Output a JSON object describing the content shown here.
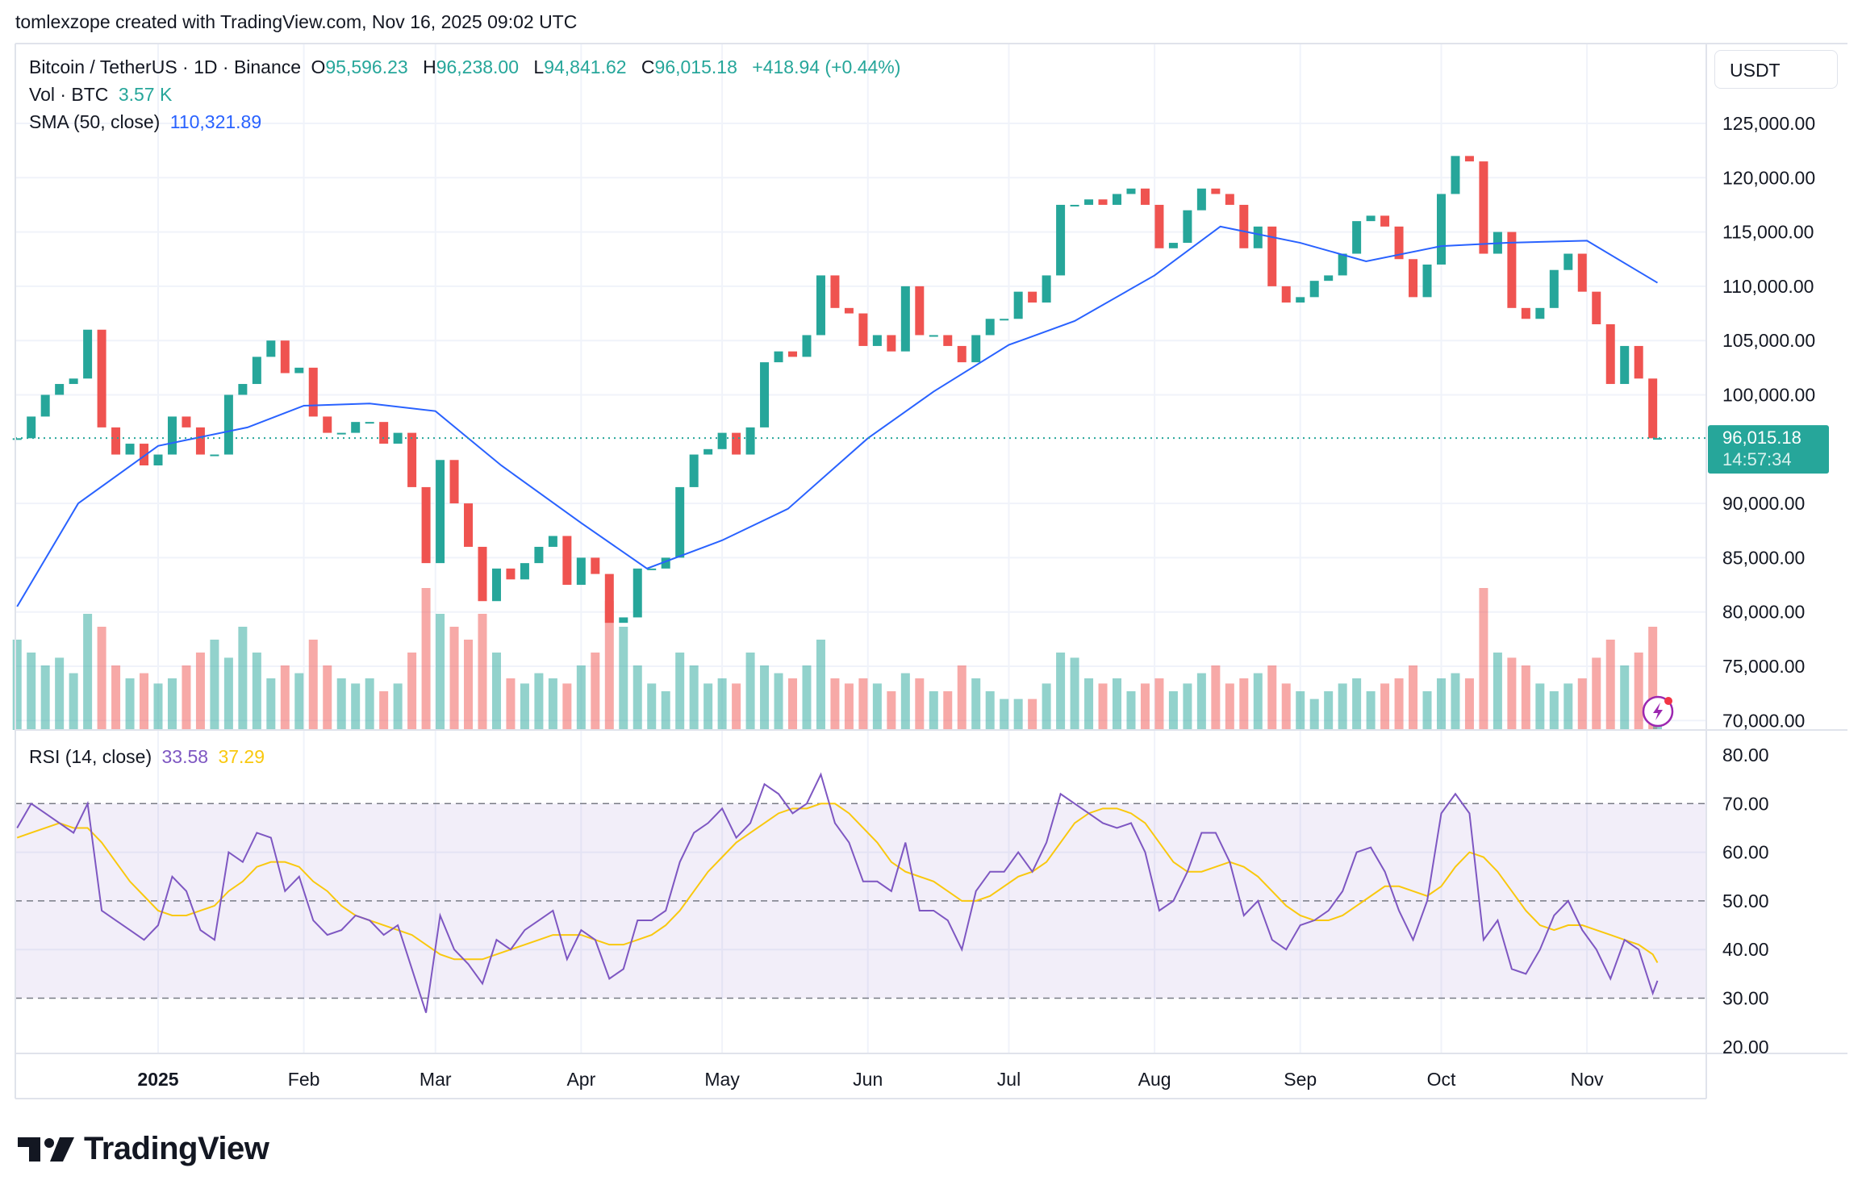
{
  "attribution": "tomlexzope created with TradingView.com, Nov 16, 2025 09:02 UTC",
  "legend": {
    "symbol": "Bitcoin / TetherUS · 1D · Binance",
    "open_label": "O",
    "open": "95,596.23",
    "high_label": "H",
    "high": "96,238.00",
    "low_label": "L",
    "low": "94,841.62",
    "close_label": "C",
    "close": "96,015.18",
    "change": "+418.94 (+0.44%)",
    "vol_label": "Vol · BTC",
    "vol": "3.57 K",
    "sma_label": "SMA (50, close)",
    "sma": "110,321.89",
    "rsi_label": "RSI (14, close)",
    "rsi": "33.58",
    "rsi_ma": "37.29"
  },
  "price_scale": {
    "currency_button": "USDT",
    "last_price": "96,015.18",
    "countdown": "14:57:34"
  },
  "logo": "TradingView",
  "colors": {
    "up": "#26a69a",
    "down": "#ef5350",
    "sma": "#2962ff",
    "rsi": "#7e57c2",
    "rsi_ma": "#f9c80e",
    "rsi_band": "#7e57c2",
    "grid": "#f0f3fa"
  },
  "chart_data": [
    {
      "type": "candlestick",
      "title": "Bitcoin / TetherUS · 1D · Binance",
      "ylim": [
        70000,
        127000
      ],
      "y_ticks": [
        "125,000.00",
        "120,000.00",
        "115,000.00",
        "110,000.00",
        "105,000.00",
        "100,000.00",
        "90,000.00",
        "85,000.00",
        "80,000.00",
        "75,000.00",
        "70,000.00"
      ],
      "y_tick_values": [
        125000,
        120000,
        115000,
        110000,
        105000,
        100000,
        90000,
        85000,
        80000,
        75000,
        70000
      ],
      "x_ticks": [
        "2025",
        "Feb",
        "Mar",
        "Apr",
        "May",
        "Jun",
        "Jul",
        "Aug",
        "Sep",
        "Oct",
        "Nov"
      ],
      "x_tick_dates": [
        "2025-01-01",
        "2025-02-01",
        "2025-03-01",
        "2025-04-01",
        "2025-05-01",
        "2025-06-01",
        "2025-07-01",
        "2025-08-01",
        "2025-09-01",
        "2025-10-01",
        "2025-11-01"
      ],
      "grid": true,
      "last_price": 96015.18,
      "dates": [
        "2024-12-02",
        "2024-12-05",
        "2024-12-08",
        "2024-12-11",
        "2024-12-14",
        "2024-12-17",
        "2024-12-20",
        "2024-12-23",
        "2024-12-26",
        "2024-12-29",
        "2025-01-01",
        "2025-01-04",
        "2025-01-07",
        "2025-01-10",
        "2025-01-13",
        "2025-01-16",
        "2025-01-19",
        "2025-01-22",
        "2025-01-25",
        "2025-01-28",
        "2025-01-31",
        "2025-02-03",
        "2025-02-06",
        "2025-02-09",
        "2025-02-12",
        "2025-02-15",
        "2025-02-18",
        "2025-02-21",
        "2025-02-24",
        "2025-02-27",
        "2025-03-02",
        "2025-03-05",
        "2025-03-08",
        "2025-03-11",
        "2025-03-14",
        "2025-03-17",
        "2025-03-20",
        "2025-03-23",
        "2025-03-26",
        "2025-03-29",
        "2025-04-01",
        "2025-04-04",
        "2025-04-07",
        "2025-04-10",
        "2025-04-13",
        "2025-04-16",
        "2025-04-19",
        "2025-04-22",
        "2025-04-25",
        "2025-04-28",
        "2025-05-01",
        "2025-05-04",
        "2025-05-07",
        "2025-05-10",
        "2025-05-13",
        "2025-05-16",
        "2025-05-19",
        "2025-05-22",
        "2025-05-25",
        "2025-05-28",
        "2025-05-31",
        "2025-06-03",
        "2025-06-06",
        "2025-06-09",
        "2025-06-12",
        "2025-06-15",
        "2025-06-18",
        "2025-06-21",
        "2025-06-24",
        "2025-06-27",
        "2025-06-30",
        "2025-07-03",
        "2025-07-06",
        "2025-07-09",
        "2025-07-12",
        "2025-07-15",
        "2025-07-18",
        "2025-07-21",
        "2025-07-24",
        "2025-07-27",
        "2025-07-30",
        "2025-08-02",
        "2025-08-05",
        "2025-08-08",
        "2025-08-11",
        "2025-08-14",
        "2025-08-17",
        "2025-08-20",
        "2025-08-23",
        "2025-08-26",
        "2025-08-29",
        "2025-09-01",
        "2025-09-04",
        "2025-09-07",
        "2025-09-10",
        "2025-09-13",
        "2025-09-16",
        "2025-09-19",
        "2025-09-22",
        "2025-09-25",
        "2025-09-28",
        "2025-10-01",
        "2025-10-04",
        "2025-10-07",
        "2025-10-10",
        "2025-10-13",
        "2025-10-16",
        "2025-10-19",
        "2025-10-22",
        "2025-10-25",
        "2025-10-28",
        "2025-10-31",
        "2025-11-03",
        "2025-11-06",
        "2025-11-09",
        "2025-11-12",
        "2025-11-15",
        "2025-11-16"
      ],
      "close": [
        96000,
        98000,
        100000,
        101000,
        101500,
        106000,
        97000,
        94500,
        95500,
        93500,
        94500,
        98000,
        97000,
        94500,
        94500,
        100000,
        101000,
        103500,
        105000,
        102000,
        102500,
        98000,
        96500,
        96500,
        97500,
        97500,
        95500,
        96500,
        91500,
        84500,
        94000,
        90000,
        86000,
        81000,
        84000,
        83000,
        84500,
        86000,
        87000,
        82500,
        85000,
        83500,
        79000,
        79500,
        84000,
        84000,
        85000,
        91500,
        94500,
        95000,
        96500,
        94500,
        97000,
        103000,
        104000,
        103500,
        105500,
        111000,
        108000,
        107500,
        104500,
        105500,
        104000,
        110000,
        105500,
        105500,
        104500,
        103000,
        105500,
        107000,
        107000,
        109500,
        108500,
        111000,
        117500,
        117500,
        118000,
        117500,
        118500,
        119000,
        117500,
        113500,
        114000,
        117000,
        119000,
        118500,
        117500,
        113500,
        115500,
        110000,
        108500,
        109000,
        110500,
        111000,
        113000,
        116000,
        116500,
        115500,
        112500,
        109000,
        112000,
        118500,
        122000,
        121500,
        113000,
        115000,
        108000,
        107000,
        108000,
        111500,
        113000,
        109500,
        106500,
        101000,
        104500,
        101500,
        96000,
        96015.18
      ],
      "volume_k_btc": [
        35,
        30,
        25,
        28,
        22,
        45,
        40,
        25,
        20,
        22,
        18,
        20,
        25,
        30,
        35,
        28,
        40,
        30,
        20,
        25,
        22,
        35,
        25,
        20,
        18,
        20,
        15,
        18,
        30,
        55,
        45,
        40,
        35,
        45,
        30,
        20,
        18,
        22,
        20,
        18,
        25,
        30,
        50,
        40,
        25,
        18,
        15,
        30,
        25,
        18,
        20,
        18,
        30,
        25,
        22,
        20,
        25,
        35,
        20,
        18,
        20,
        18,
        15,
        22,
        20,
        15,
        15,
        25,
        20,
        15,
        12,
        12,
        12,
        18,
        30,
        28,
        20,
        18,
        20,
        15,
        18,
        20,
        15,
        18,
        22,
        25,
        18,
        20,
        22,
        25,
        18,
        15,
        12,
        15,
        18,
        20,
        15,
        18,
        20,
        25,
        15,
        20,
        22,
        20,
        55,
        30,
        28,
        25,
        18,
        15,
        18,
        20,
        28,
        35,
        25,
        30,
        40,
        3.57
      ],
      "sma50": {
        "name": "SMA (50, close)",
        "dates": [
          "2024-12-02",
          "2024-12-15",
          "2025-01-01",
          "2025-01-20",
          "2025-02-01",
          "2025-02-15",
          "2025-03-01",
          "2025-03-15",
          "2025-04-01",
          "2025-04-15",
          "2025-05-01",
          "2025-05-15",
          "2025-06-01",
          "2025-06-15",
          "2025-07-01",
          "2025-07-15",
          "2025-08-01",
          "2025-08-15",
          "2025-09-01",
          "2025-09-15",
          "2025-10-01",
          "2025-10-15",
          "2025-11-01",
          "2025-11-16"
        ],
        "values": [
          80500,
          90000,
          95300,
          97000,
          99000,
          99200,
          98500,
          93500,
          88200,
          84000,
          86600,
          89500,
          96000,
          100300,
          104600,
          106800,
          111000,
          115500,
          114000,
          112300,
          113700,
          114000,
          114200,
          110321.89
        ]
      }
    },
    {
      "type": "line",
      "title": "RSI (14, close)",
      "ylim": [
        20,
        80
      ],
      "y_ticks": [
        "80.00",
        "70.00",
        "60.00",
        "50.00",
        "40.00",
        "30.00",
        "20.00"
      ],
      "y_tick_values": [
        80,
        70,
        60,
        50,
        40,
        30,
        20
      ],
      "band": [
        30,
        70
      ],
      "series": [
        {
          "name": "RSI",
          "values": [
            65,
            70,
            68,
            66,
            64,
            70,
            48,
            46,
            44,
            42,
            45,
            55,
            52,
            44,
            42,
            60,
            58,
            64,
            63,
            52,
            55,
            46,
            43,
            44,
            47,
            46,
            43,
            45,
            36,
            27,
            47,
            40,
            37,
            33,
            42,
            40,
            44,
            46,
            48,
            38,
            44,
            42,
            34,
            36,
            46,
            46,
            48,
            58,
            64,
            66,
            69,
            63,
            66,
            74,
            72,
            68,
            70,
            76,
            66,
            62,
            54,
            54,
            52,
            62,
            48,
            48,
            46,
            40,
            52,
            56,
            56,
            60,
            56,
            62,
            72,
            70,
            68,
            66,
            65,
            66,
            60,
            48,
            50,
            56,
            64,
            64,
            58,
            47,
            50,
            42,
            40,
            45,
            46,
            48,
            52,
            60,
            61,
            56,
            48,
            42,
            50,
            68,
            72,
            68,
            42,
            46,
            36,
            35,
            40,
            47,
            50,
            44,
            40,
            34,
            42,
            40,
            31,
            33.58
          ]
        },
        {
          "name": "RSI-based MA",
          "values": [
            63,
            64,
            65,
            66,
            65,
            65,
            62,
            58,
            54,
            51,
            48,
            47,
            47,
            48,
            49,
            52,
            54,
            57,
            58,
            58,
            57,
            54,
            52,
            49,
            47,
            46,
            45,
            44,
            43,
            41,
            39,
            38,
            38,
            38,
            39,
            40,
            41,
            42,
            43,
            43,
            43,
            42,
            41,
            41,
            42,
            43,
            45,
            48,
            52,
            56,
            59,
            62,
            64,
            66,
            68,
            69,
            69,
            70,
            70,
            68,
            65,
            62,
            58,
            56,
            55,
            54,
            52,
            50,
            50,
            51,
            53,
            55,
            56,
            58,
            62,
            66,
            68,
            69,
            69,
            68,
            66,
            62,
            58,
            56,
            56,
            57,
            58,
            57,
            55,
            52,
            49,
            47,
            46,
            46,
            47,
            49,
            51,
            53,
            53,
            52,
            51,
            53,
            57,
            60,
            59,
            56,
            52,
            48,
            45,
            44,
            45,
            45,
            44,
            43,
            42,
            41,
            39,
            37.29
          ]
        }
      ]
    }
  ]
}
